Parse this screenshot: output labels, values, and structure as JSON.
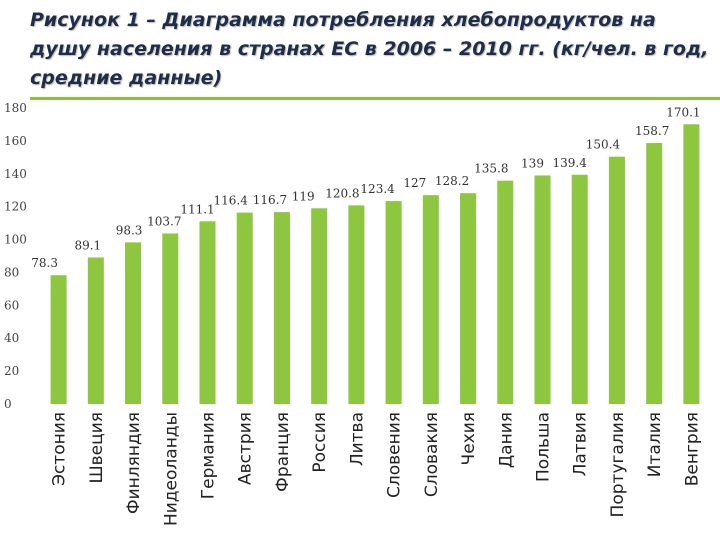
{
  "title": "Рисунок 1 – Диаграмма потребления хлебопродуктов на душу населения в странах ЕС в 2006 – 2010 гг. (кг/чел. в год, средние данные)",
  "colors": {
    "bar": "#8dc63f",
    "title": "#1f2d4a",
    "rule": "#8bbf3d"
  },
  "chart_data": {
    "type": "bar",
    "title": "Рисунок 1 – Диаграмма потребления хлебопродуктов на душу населения в странах ЕС в 2006 – 2010 гг. (кг/чел. в год, средние данные)",
    "xlabel": "",
    "ylabel": "",
    "ylim": [
      0,
      180
    ],
    "yticks": [
      0,
      20,
      40,
      60,
      80,
      100,
      120,
      140,
      160,
      180
    ],
    "grid": false,
    "legend": "none",
    "categories": [
      "Эстония",
      "Швеция",
      "Финляндия",
      "Нидеоланды",
      "Германия",
      "Австрия",
      "Франция",
      "Россия",
      "Литва",
      "Словения",
      "Словакия",
      "Чехия",
      "Дания",
      "Польша",
      "Латвия",
      "Португалия",
      "Италия",
      "Венгрия"
    ],
    "values": [
      78.3,
      89.1,
      98.3,
      103.7,
      111.1,
      116.4,
      116.7,
      119,
      120.8,
      123.4,
      127,
      128.2,
      135.8,
      139,
      139.4,
      150.4,
      158.7,
      170.1
    ]
  }
}
